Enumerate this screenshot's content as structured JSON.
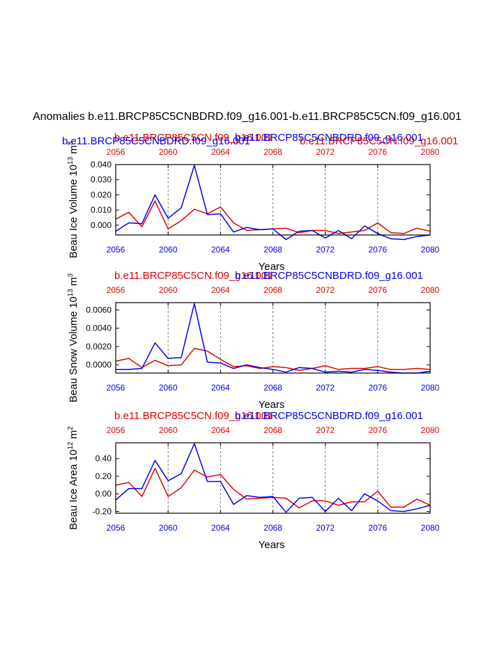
{
  "figure": {
    "title": "Anomalies b.e11.BRCP85C5CNBDRD.f09_g16.001-b.e11.BRCP85C5CN.f09_g16.001"
  },
  "colors": {
    "series_a": "#e00000",
    "series_b": "#0000ee",
    "axis": "#000000"
  },
  "chart_data": [
    {
      "type": "line",
      "title_left": "b.e11.BRCP85C5CN.f09_g16.001",
      "title_right": "b.e11.BRCP85C5CNBDRD.f09_g16.001",
      "title_left_overlap": "b.e11.BRCP85C5CNBDRD.f09_g16.001",
      "title_right_overlap": "b.e11.BRCP85C5CN.f09_g16.001",
      "ylabel": "Beau Ice Volume 10",
      "ylabel_exp": "13",
      "ylabel_unit": " m",
      "ylabel_unit_exp": "3",
      "xlabel": "Years",
      "xlim": [
        2056,
        2080
      ],
      "ylim": [
        -0.0065,
        0.04
      ],
      "xticks": [
        "2056",
        "2060",
        "2064",
        "2068",
        "2072",
        "2076",
        "2080"
      ],
      "yticks": [
        "0.040",
        "0.030",
        "0.020",
        "0.010",
        "0.000"
      ],
      "ytick_values": [
        0.04,
        0.03,
        0.02,
        0.01,
        0.0
      ],
      "vgrid_x": [
        2060,
        2064,
        2068,
        2072,
        2076
      ],
      "x": [
        2056,
        2057,
        2058,
        2059,
        2060,
        2061,
        2062,
        2063,
        2064,
        2065,
        2066,
        2067,
        2068,
        2069,
        2070,
        2071,
        2072,
        2073,
        2074,
        2075,
        2076,
        2077,
        2078,
        2079,
        2080
      ],
      "series": [
        {
          "name": "b.e11.BRCP85C5CN.f09_g16.001",
          "color": "#e00000",
          "values": [
            0.004,
            0.0085,
            -0.001,
            0.016,
            -0.0025,
            0.003,
            0.0105,
            0.0075,
            0.012,
            0.0015,
            -0.0035,
            -0.003,
            -0.0025,
            -0.002,
            -0.005,
            -0.0035,
            -0.0035,
            -0.0055,
            -0.0045,
            -0.0035,
            0.0015,
            -0.005,
            -0.0055,
            -0.002,
            -0.004
          ]
        },
        {
          "name": "b.e11.BRCP85C5CNBDRD.f09_g16.001",
          "color": "#0000ee",
          "values": [
            -0.004,
            0.0015,
            0.001,
            0.02,
            0.0045,
            0.0115,
            0.0395,
            0.007,
            0.0075,
            -0.0045,
            -0.0015,
            -0.003,
            -0.0025,
            -0.0095,
            -0.004,
            -0.0035,
            -0.0085,
            -0.0035,
            -0.009,
            -0.0005,
            -0.0055,
            -0.009,
            -0.0095,
            -0.0075,
            -0.0065
          ]
        }
      ]
    },
    {
      "type": "line",
      "title_left": "b.e11.BRCP85C5CN.f09_g16.001",
      "title_right": "b.e11.BRCP85C5CNBDRD.f09_g16.001",
      "ylabel": "Beau Snow Volume 10",
      "ylabel_exp": "13",
      "ylabel_unit": " m",
      "ylabel_unit_exp": "3",
      "xlabel": "Years",
      "xlim": [
        2056,
        2080
      ],
      "ylim": [
        -0.0009,
        0.0068
      ],
      "xticks": [
        "2056",
        "2060",
        "2064",
        "2068",
        "2072",
        "2076",
        "2080"
      ],
      "yticks": [
        "0.0060",
        "0.0040",
        "0.0020",
        "0.0000"
      ],
      "ytick_values": [
        0.006,
        0.004,
        0.002,
        0.0
      ],
      "vgrid_x": [
        2060,
        2064,
        2068,
        2072,
        2076
      ],
      "x": [
        2056,
        2057,
        2058,
        2059,
        2060,
        2061,
        2062,
        2063,
        2064,
        2065,
        2066,
        2067,
        2068,
        2069,
        2070,
        2071,
        2072,
        2073,
        2074,
        2075,
        2076,
        2077,
        2078,
        2079,
        2080
      ],
      "series": [
        {
          "name": "b.e11.BRCP85C5CN.f09_g16.001",
          "color": "#e00000",
          "values": [
            0.0004,
            0.0007,
            -0.0003,
            0.0005,
            -0.0001,
            0.0,
            0.0018,
            0.0015,
            0.0006,
            -0.0002,
            -0.0001,
            -0.0004,
            -0.0002,
            -0.0003,
            -0.0006,
            -0.0004,
            -0.0001,
            -0.0005,
            -0.0004,
            -0.0004,
            -0.0002,
            -0.0005,
            -0.0005,
            -0.0004,
            -0.0005
          ]
        },
        {
          "name": "b.e11.BRCP85C5CNBDRD.f09_g16.001",
          "color": "#0000ee",
          "values": [
            -0.0005,
            -0.0005,
            -0.0004,
            0.0024,
            0.0007,
            0.0008,
            0.0067,
            0.0003,
            0.0002,
            -0.0004,
            0.0,
            -0.0003,
            -0.0005,
            -0.0008,
            -0.0003,
            -0.0004,
            -0.0008,
            -0.0007,
            -0.0008,
            -0.0005,
            -0.0006,
            -0.0008,
            -0.0009,
            -0.0009,
            -0.0007
          ]
        }
      ]
    },
    {
      "type": "line",
      "title_left": "b.e11.BRCP85C5CN.f09_g16.001",
      "title_right": "b.e11.BRCP85C5CNBDRD.f09_g16.001",
      "ylabel": "Beau Ice Area 10",
      "ylabel_exp": "12",
      "ylabel_unit": " m",
      "ylabel_unit_exp": "2",
      "xlabel": "Years",
      "xlim": [
        2056,
        2080
      ],
      "ylim": [
        -0.22,
        0.58
      ],
      "xticks": [
        "2056",
        "2060",
        "2064",
        "2068",
        "2072",
        "2076",
        "2080"
      ],
      "yticks": [
        "0.40",
        "0.20",
        "0.00",
        "-0.20"
      ],
      "ytick_values": [
        0.4,
        0.2,
        0.0,
        -0.2
      ],
      "vgrid_x": [
        2060,
        2064,
        2068,
        2072,
        2076
      ],
      "x": [
        2056,
        2057,
        2058,
        2059,
        2060,
        2061,
        2062,
        2063,
        2064,
        2065,
        2066,
        2067,
        2068,
        2069,
        2070,
        2071,
        2072,
        2073,
        2074,
        2075,
        2076,
        2077,
        2078,
        2079,
        2080
      ],
      "series": [
        {
          "name": "b.e11.BRCP85C5CN.f09_g16.001",
          "color": "#e00000",
          "values": [
            0.1,
            0.13,
            -0.03,
            0.29,
            -0.03,
            0.07,
            0.27,
            0.19,
            0.22,
            0.05,
            -0.06,
            -0.05,
            -0.04,
            -0.05,
            -0.16,
            -0.08,
            -0.08,
            -0.13,
            -0.09,
            -0.09,
            0.03,
            -0.15,
            -0.15,
            -0.06,
            -0.13
          ]
        },
        {
          "name": "b.e11.BRCP85C5CNBDRD.f09_g16.001",
          "color": "#0000ee",
          "values": [
            -0.07,
            0.06,
            0.06,
            0.38,
            0.15,
            0.23,
            0.57,
            0.14,
            0.14,
            -0.12,
            -0.02,
            -0.04,
            -0.03,
            -0.21,
            -0.05,
            -0.04,
            -0.2,
            -0.05,
            -0.19,
            0.0,
            -0.08,
            -0.19,
            -0.2,
            -0.17,
            -0.13
          ]
        }
      ]
    }
  ]
}
